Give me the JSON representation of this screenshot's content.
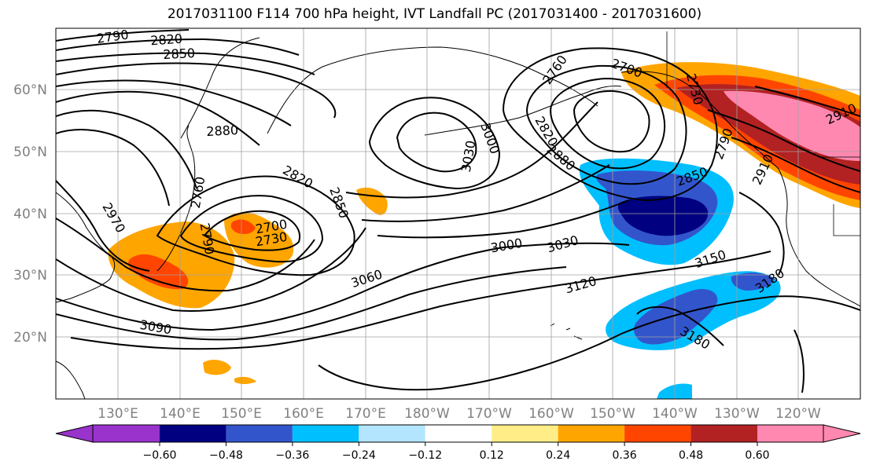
{
  "title": "2017031100 F114 700 hPa height, IVT Landfall PC (2017031400 - 2017031600)",
  "lat_labels": [
    "60°N",
    "50°N",
    "40°N",
    "30°N",
    "20°N"
  ],
  "lon_labels": [
    "130°E",
    "140°E",
    "150°E",
    "160°E",
    "170°E",
    "180°W",
    "170°W",
    "160°W",
    "150°W",
    "140°W",
    "130°W",
    "120°W"
  ],
  "contour_labels": [
    "2790",
    "2820",
    "2850",
    "2880",
    "2820",
    "2850",
    "2760",
    "2790",
    "2700",
    "2730",
    "2970",
    "3030",
    "3000",
    "3060",
    "3090",
    "3000",
    "3030",
    "3120",
    "3150",
    "3180",
    "3180",
    "2760",
    "2700",
    "2730",
    "2790",
    "2850",
    "2820",
    "2880",
    "2910",
    "2910"
  ],
  "colorbar": {
    "colors": [
      "#9933cc",
      "#000080",
      "#3355cc",
      "#00bfff",
      "#b3e5ff",
      "#ffffff",
      "#ffee88",
      "#ffa500",
      "#ff4500",
      "#b22222",
      "#ff88b0"
    ],
    "tick_labels": [
      "−0.60",
      "−0.48",
      "−0.36",
      "−0.24",
      "−0.12",
      "0.12",
      "0.24",
      "0.36",
      "0.48",
      "0.60"
    ]
  }
}
